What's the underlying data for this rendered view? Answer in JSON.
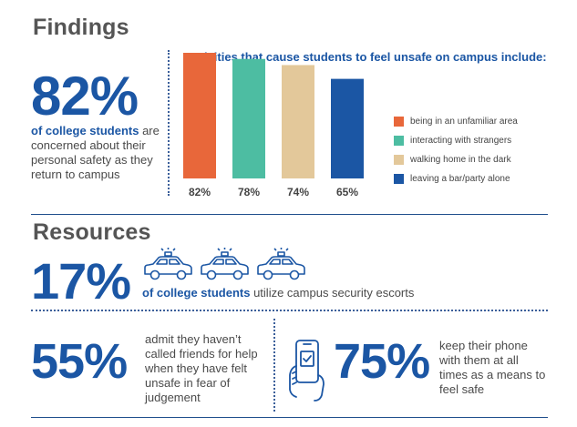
{
  "findings": {
    "heading": "Findings",
    "stat_value": "82%",
    "stat_highlight": "of college students",
    "stat_text": " are concerned about their personal safety as they return to campus"
  },
  "chart_data": {
    "type": "bar",
    "title": "Activities that cause students to feel unsafe on campus include:",
    "categories": [
      "being in an unfamiliar area",
      "interacting with strangers",
      "walking home in the dark",
      "leaving a bar/party alone"
    ],
    "values": [
      82,
      78,
      74,
      65
    ],
    "value_labels": [
      "82%",
      "78%",
      "74%",
      "65%"
    ],
    "colors": [
      "#e8673a",
      "#4dbda2",
      "#e3c89a",
      "#1b56a4"
    ],
    "ylim": [
      0,
      100
    ],
    "grid": false,
    "legend": "right"
  },
  "resources": {
    "heading": "Resources",
    "escort_value": "17%",
    "escort_highlight": "of college students",
    "escort_text": " utilize campus security escorts",
    "escort_icons": [
      "police-car-icon",
      "police-car-icon",
      "police-car-icon"
    ],
    "friends_value": "55%",
    "friends_text": "admit they haven’t called friends for help when they have felt unsafe in fear of judgement",
    "phone_value": "75%",
    "phone_text": "keep their phone with them at all times as a means to feel safe",
    "phone_icon": "phone-in-hand-icon"
  }
}
